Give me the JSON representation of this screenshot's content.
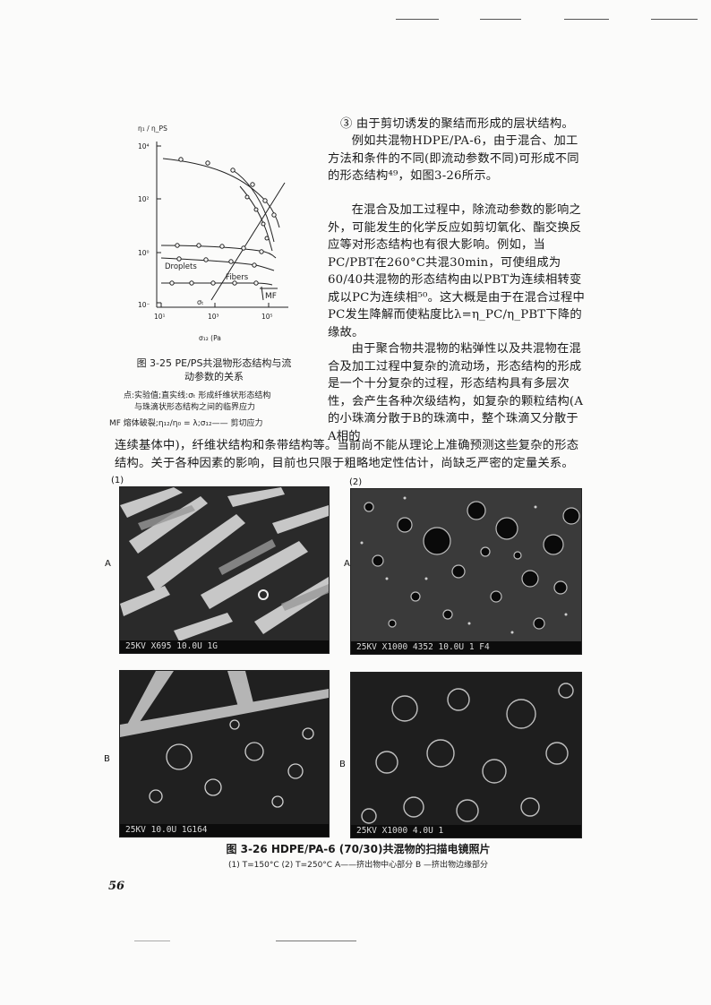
{
  "figure_3_25": {
    "y_axis_label": "η₁ / η_PS",
    "x_axis_label": "σ₁₂ (Pa",
    "y_ticks": [
      "10⁴",
      "10²",
      "10⁰",
      "10⁻"
    ],
    "x_ticks": [
      "10¹",
      "10³",
      "10⁵"
    ],
    "annotations": {
      "droplets": "Droplets",
      "fibers": "Fibers",
      "sigma": "σₜ",
      "mf": "MF"
    },
    "caption_line1": "图 3-25  PE/PS共混物形态结构与流",
    "caption_line2": "动参数的关系",
    "legend_line1": "点:实验值;直实线:σₜ        形成纤维状形态结构",
    "legend_line2": "与珠滴状形态结构之间的临界应力",
    "legend_line3": "MF    熔体破裂;η₁₂/η₀ = λ;σ₁₂—— 剪切应力"
  },
  "body": {
    "p1": "③ 由于剪切诱发的聚结而形成的层状结构。",
    "p2": "例如共混物HDPE/PA-6，由于混合、加工方法和条件的不同(即流动参数不同)可形成不同的形态结构⁴⁹，如图3-26所示。",
    "p3": "在混合及加工过程中，除流动参数的影响之外，可能发生的化学反应如剪切氧化、酯交换反应等对形态结构也有很大影响。例如，当PC/PBT在260°C共混30min，可使组成为60/40共混物的形态结构由以PBT为连续相转变成以PC为连续相⁵⁰。这大概是由于在混合过程中PC发生降解而使粘度比λ=η_PC/η_PBT下降的缘故。",
    "p4a": "由于聚合物共混物的粘弹性以及共混物在混合及加工过程中复杂的流动场，形态结构的形成是一个十分复杂的过程，形态结构具有多层次性，会产生各种次级结构，如复杂的颗粒结构(A的小珠滴分散于B的珠滴中，整个珠滴又分散于A相的",
    "p4b": "连续基体中)，纤维状结构和条带结构等。当前尚不能从理论上准确预测这些复杂的形态结构。关于各种因素的影响，目前也只限于粗略地定性估计，尚缺乏严密的定量关系。"
  },
  "figure_3_26": {
    "col1_label": "(1)",
    "col2_label": "(2)",
    "row_a": "A",
    "row_b": "B",
    "photo1a_bar": "25KV  X695   10.0U  1G",
    "photo2a_bar": "25KV X1000  4352  10.0U 1 F4",
    "photo1b_bar": "25KV          10.0U 1G164",
    "photo2b_bar": "25KV  X1000      4.0U 1",
    "caption": "图 3-26  HDPE/PA-6 (70/30)共混物的扫描电镜照片",
    "subcaption": "(1) T=150°C  (2) T=250°C  A——挤出物中心部分  B  —挤出物边缘部分"
  },
  "page_number": "56"
}
